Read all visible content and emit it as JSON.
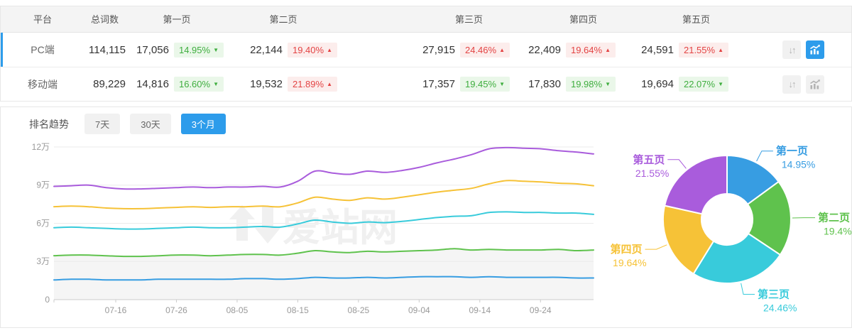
{
  "colors": {
    "accent_blue": "#2d9ceb",
    "badge_up_red": "#e34444",
    "badge_down_green": "#3fae3f",
    "page1_blue": "#379de2",
    "page2_green": "#5fc24d",
    "page3_cyan": "#38cbdb",
    "page4_yellow": "#f6c237",
    "page5_purple": "#a95cdc"
  },
  "table": {
    "headers": [
      "平台",
      "总词数",
      "第一页",
      "第二页",
      "第三页",
      "第四页",
      "第五页"
    ],
    "rows": [
      {
        "platform": "PC端",
        "total": "114,115",
        "active": true,
        "pages": [
          {
            "value": "17,056",
            "pct": "14.95%",
            "dir": "down"
          },
          {
            "value": "22,144",
            "pct": "19.40%",
            "dir": "up"
          },
          {
            "value": "27,915",
            "pct": "24.46%",
            "dir": "up"
          },
          {
            "value": "22,409",
            "pct": "19.64%",
            "dir": "up"
          },
          {
            "value": "24,591",
            "pct": "21.55%",
            "dir": "up"
          }
        ],
        "actions": [
          {
            "icon": "sort-arrows",
            "active": false
          },
          {
            "icon": "trend-chart",
            "active": true
          }
        ]
      },
      {
        "platform": "移动端",
        "total": "89,229",
        "active": false,
        "pages": [
          {
            "value": "14,816",
            "pct": "16.60%",
            "dir": "down"
          },
          {
            "value": "19,532",
            "pct": "21.89%",
            "dir": "up"
          },
          {
            "value": "17,357",
            "pct": "19.45%",
            "dir": "down"
          },
          {
            "value": "17,830",
            "pct": "19.98%",
            "dir": "down"
          },
          {
            "value": "19,694",
            "pct": "22.07%",
            "dir": "down"
          }
        ],
        "actions": [
          {
            "icon": "sort-arrows",
            "active": false
          },
          {
            "icon": "trend-chart",
            "active": false
          }
        ]
      }
    ]
  },
  "trend": {
    "title": "排名趋势",
    "tabs": [
      {
        "label": "7天",
        "active": false
      },
      {
        "label": "30天",
        "active": false
      },
      {
        "label": "3个月",
        "active": true
      }
    ]
  },
  "watermark": {
    "text": "爱站网"
  },
  "chart_data": [
    {
      "type": "line",
      "title": "排名趋势（3个月, PC端）",
      "stacked": true,
      "note": "Cumulative stacked keyword counts by result page, unit 万 (10k). 32 evenly spaced samples spanning roughly 07-06 to 10-03.",
      "x_ticks": [
        "07-16",
        "07-26",
        "08-05",
        "08-15",
        "08-25",
        "09-04",
        "09-14",
        "09-24"
      ],
      "y_ticks": [
        {
          "label": "0",
          "v": 0
        },
        {
          "label": "3万",
          "v": 3
        },
        {
          "label": "6万",
          "v": 6
        },
        {
          "label": "9万",
          "v": 9
        },
        {
          "label": "12万",
          "v": 12
        }
      ],
      "ylim_wan": [
        0,
        12
      ],
      "series": [
        {
          "name": "第一页",
          "color": "#379de2",
          "area": false,
          "values_wan": [
            1.55,
            1.6,
            1.6,
            1.55,
            1.55,
            1.55,
            1.6,
            1.6,
            1.6,
            1.6,
            1.6,
            1.65,
            1.65,
            1.6,
            1.65,
            1.75,
            1.7,
            1.7,
            1.75,
            1.7,
            1.75,
            1.8,
            1.8,
            1.8,
            1.75,
            1.8,
            1.75,
            1.75,
            1.75,
            1.75,
            1.7,
            1.7
          ]
        },
        {
          "name": "第二页",
          "color": "#5fc24d",
          "area": true,
          "values_wan": [
            3.45,
            3.5,
            3.5,
            3.45,
            3.4,
            3.4,
            3.45,
            3.5,
            3.5,
            3.45,
            3.5,
            3.55,
            3.55,
            3.5,
            3.65,
            3.85,
            3.75,
            3.7,
            3.8,
            3.75,
            3.8,
            3.85,
            3.9,
            4.0,
            3.9,
            3.95,
            3.9,
            3.9,
            3.9,
            3.95,
            3.85,
            3.9
          ]
        },
        {
          "name": "第三页",
          "color": "#38cbdb",
          "area": false,
          "values_wan": [
            5.65,
            5.7,
            5.65,
            5.6,
            5.55,
            5.55,
            5.6,
            5.65,
            5.7,
            5.65,
            5.65,
            5.7,
            5.75,
            5.7,
            5.95,
            6.25,
            6.1,
            6.0,
            6.1,
            6.05,
            6.15,
            6.3,
            6.45,
            6.55,
            6.6,
            6.85,
            6.9,
            6.85,
            6.85,
            6.8,
            6.8,
            6.7
          ]
        },
        {
          "name": "第四页",
          "color": "#f6c237",
          "area": false,
          "values_wan": [
            7.3,
            7.35,
            7.3,
            7.2,
            7.15,
            7.15,
            7.2,
            7.25,
            7.3,
            7.25,
            7.3,
            7.3,
            7.35,
            7.3,
            7.6,
            8.05,
            7.9,
            7.8,
            8.0,
            7.9,
            8.05,
            8.25,
            8.45,
            8.6,
            8.75,
            9.1,
            9.35,
            9.3,
            9.25,
            9.15,
            9.1,
            8.95
          ]
        },
        {
          "name": "第五页",
          "color": "#a95cdc",
          "area": false,
          "values_wan": [
            8.9,
            8.95,
            9.0,
            8.8,
            8.7,
            8.7,
            8.75,
            8.8,
            8.85,
            8.8,
            8.85,
            8.85,
            8.9,
            8.85,
            9.3,
            10.1,
            9.95,
            9.85,
            10.1,
            10.0,
            10.15,
            10.4,
            10.75,
            11.05,
            11.4,
            11.85,
            11.95,
            11.9,
            11.85,
            11.7,
            11.6,
            11.45
          ]
        }
      ]
    },
    {
      "type": "pie",
      "donut": true,
      "title": "页面占比（PC端）",
      "slices": [
        {
          "label": "第一页",
          "value": 14.95,
          "pct_label": "14.95%",
          "color": "#379de2"
        },
        {
          "label": "第二页",
          "value": 19.4,
          "pct_label": "19.4%",
          "color": "#5fc24d"
        },
        {
          "label": "第三页",
          "value": 24.46,
          "pct_label": "24.46%",
          "color": "#38cbdb"
        },
        {
          "label": "第四页",
          "value": 19.64,
          "pct_label": "19.64%",
          "color": "#f6c237"
        },
        {
          "label": "第五页",
          "value": 21.55,
          "pct_label": "21.55%",
          "color": "#a95cdc"
        }
      ]
    }
  ]
}
